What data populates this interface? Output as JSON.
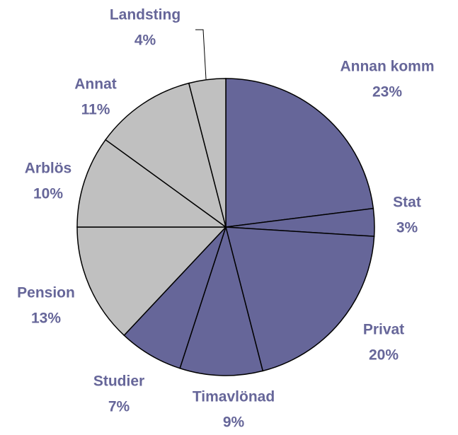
{
  "chart_data": {
    "type": "pie",
    "categories": [
      "Annan komm",
      "Stat",
      "Privat",
      "Timavlönad",
      "Studier",
      "Pension",
      "Arblös",
      "Annat",
      "Landsting"
    ],
    "values": [
      23,
      3,
      20,
      9,
      7,
      13,
      10,
      11,
      4
    ],
    "value_labels": [
      "23%",
      "3%",
      "20%",
      "9%",
      "7%",
      "13%",
      "10%",
      "11%",
      "4%"
    ],
    "colors": [
      "#666699",
      "#666699",
      "#666699",
      "#666699",
      "#666699",
      "#c0c0c0",
      "#c0c0c0",
      "#c0c0c0",
      "#c0c0c0"
    ]
  }
}
